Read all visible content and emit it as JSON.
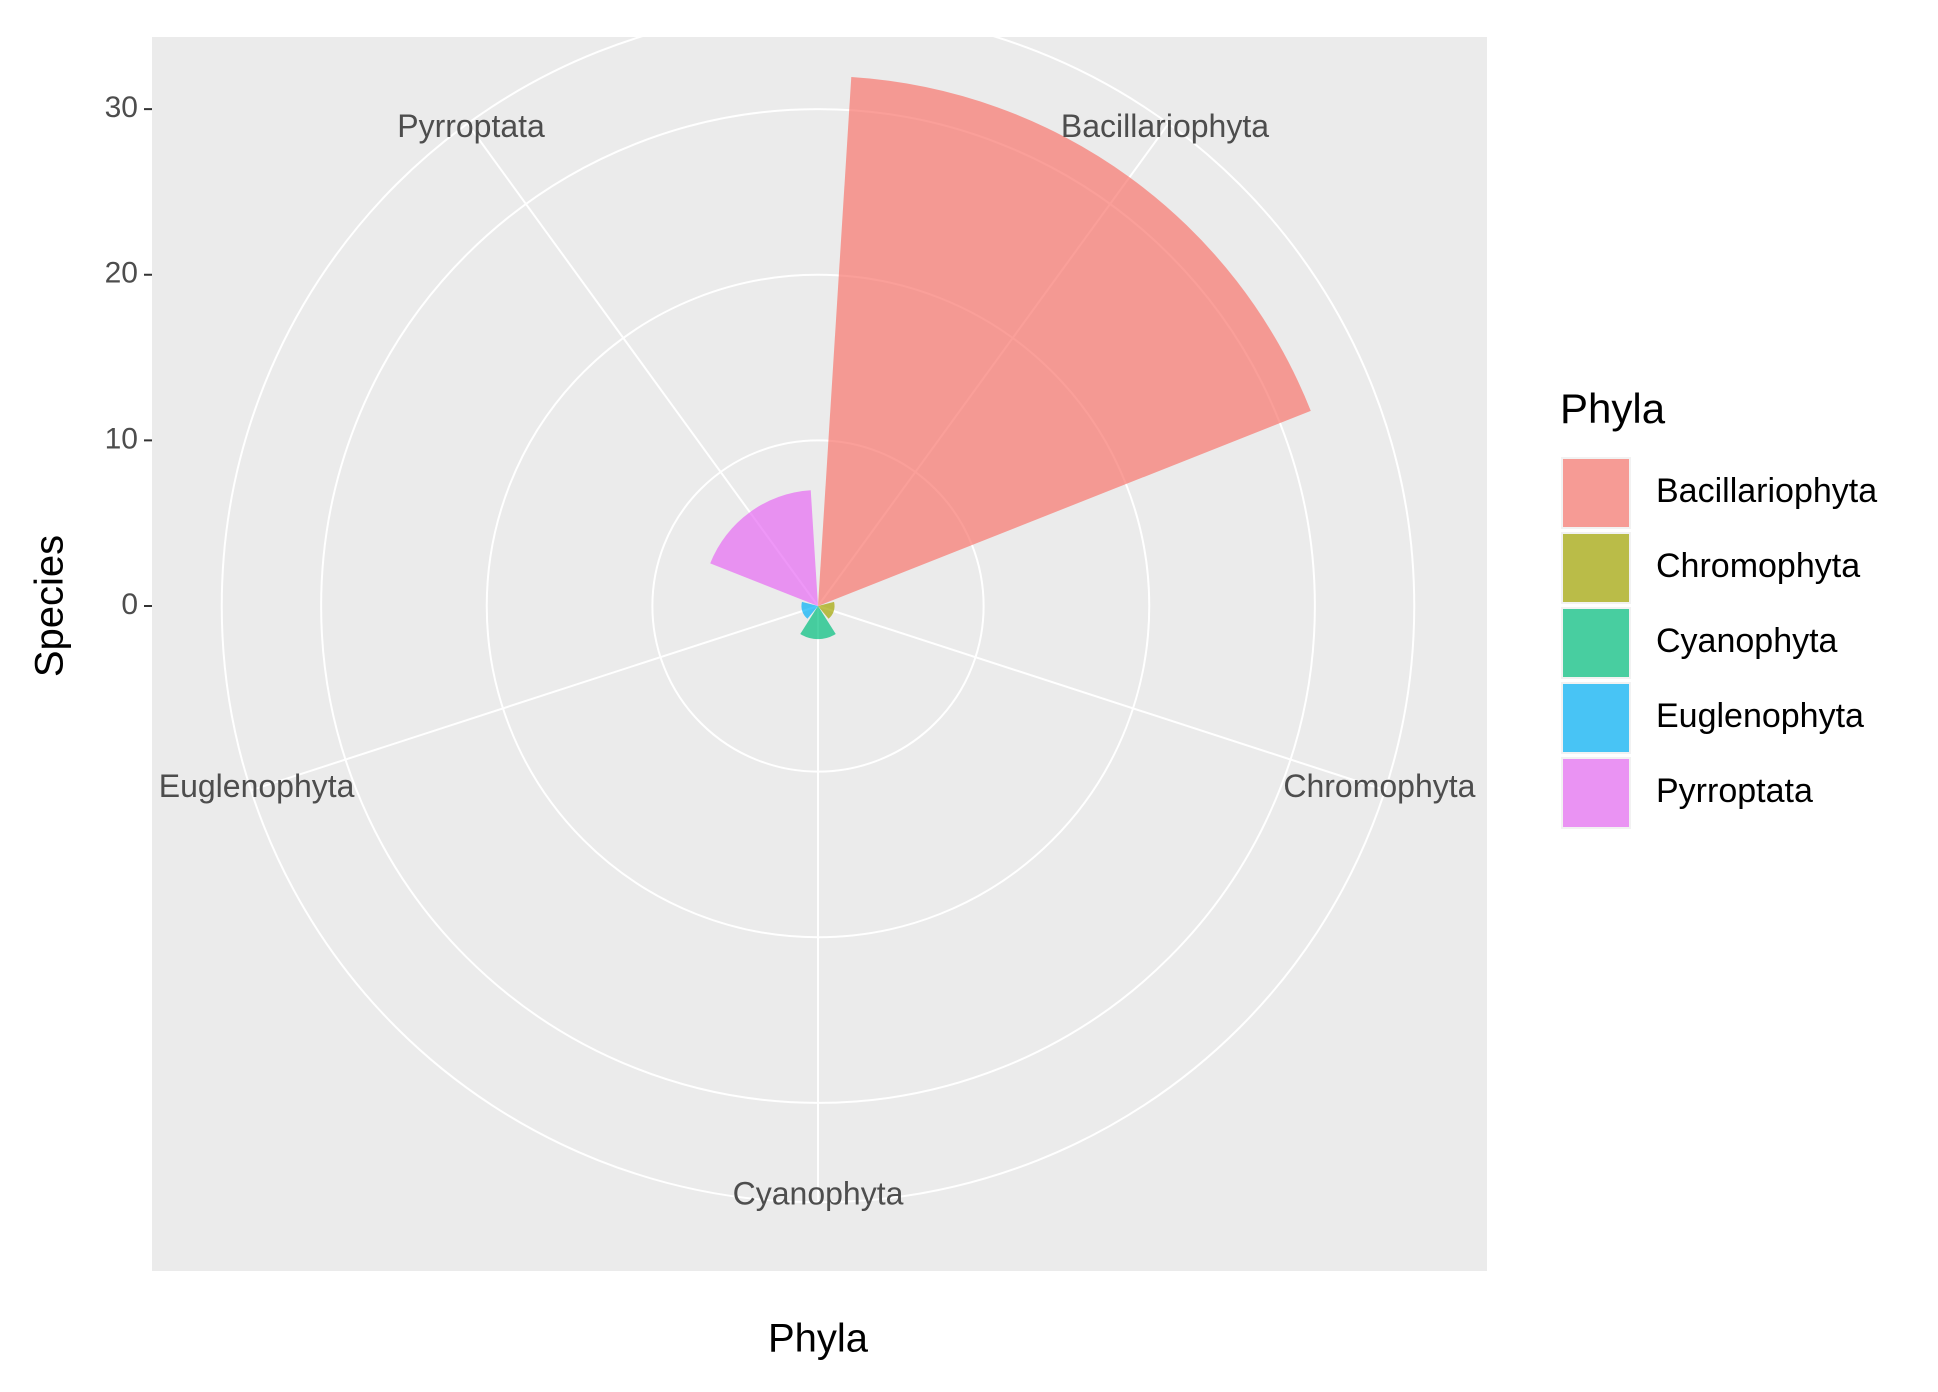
{
  "chart_data": {
    "type": "bar",
    "coord": "polar",
    "x_label": "Phyla",
    "y_label": "Species",
    "legend_title": "Phyla",
    "categories": [
      "Bacillariophyta",
      "Chromophyta",
      "Cyanophyta",
      "Euglenophyta",
      "Pyrroptata"
    ],
    "values": [
      32,
      1,
      2,
      1,
      7
    ],
    "colors": [
      "#F8766D",
      "#A3A500",
      "#00BF7D",
      "#00B0F6",
      "#E76BF3"
    ],
    "ylim": [
      0,
      32
    ],
    "yticks": [
      0,
      10,
      20,
      30
    ],
    "grid": true
  }
}
